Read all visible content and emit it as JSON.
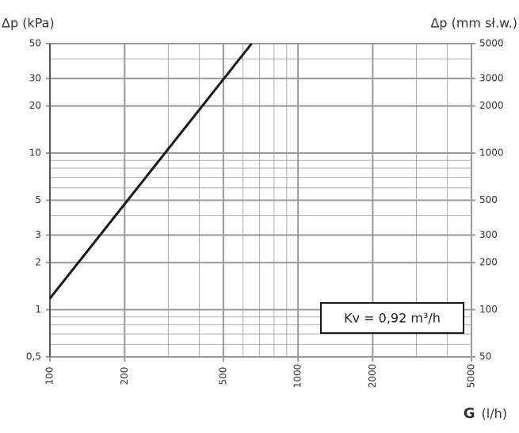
{
  "chart_data": {
    "type": "line",
    "y_label": "Δp (kPa)",
    "y2_label": "Δp (mm sł.w.)",
    "x_label": "G",
    "x_unit": "(l/h)",
    "annotation": "Kv = 0,92 m³/h",
    "log_x": true,
    "log_y": true,
    "grid": true,
    "xlim": [
      100,
      5000
    ],
    "xticks": [
      100,
      200,
      500,
      1000,
      2000,
      5000
    ],
    "xminor": [
      300,
      400,
      600,
      700,
      800,
      900,
      3000,
      4000
    ],
    "ylim": [
      0.5,
      50
    ],
    "yticks": [
      {
        "value": 0.5,
        "label": "0,5"
      },
      1,
      2,
      3,
      5,
      10,
      20,
      30,
      50
    ],
    "yminor": [
      0.6,
      0.7,
      0.8,
      0.9,
      4,
      6,
      7,
      8,
      9,
      40
    ],
    "y2lim": [
      50,
      5000
    ],
    "y2ticks": [
      50,
      100,
      200,
      300,
      500,
      1000,
      2000,
      3000,
      5000
    ],
    "series": [
      {
        "color": "#1a1a1a",
        "x": [
          100,
          650
        ],
        "values": [
          1.18,
          50
        ]
      }
    ]
  }
}
